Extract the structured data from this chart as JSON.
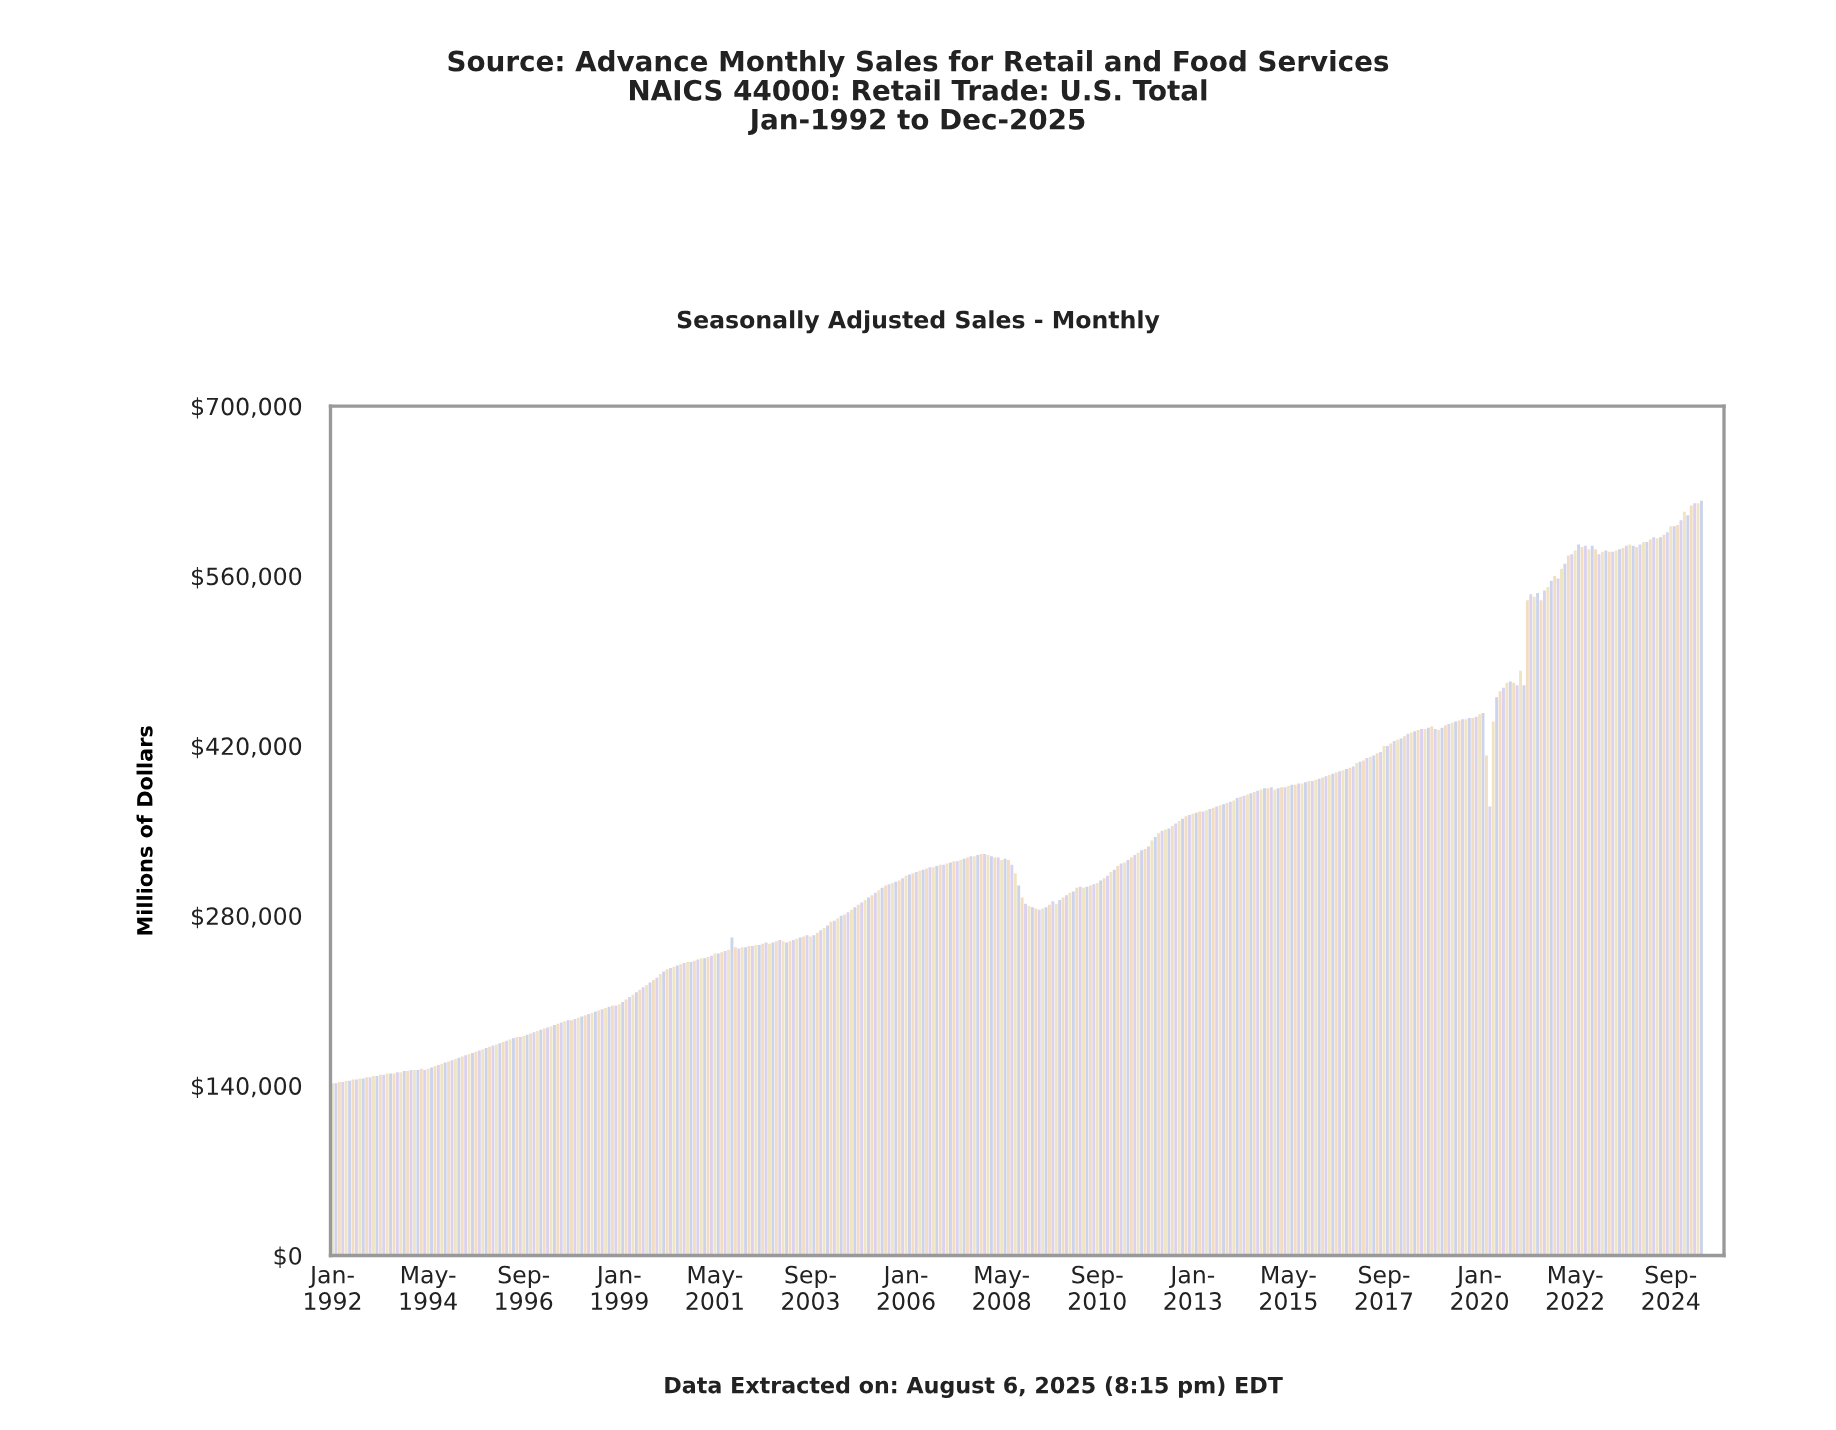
{
  "chart_data": {
    "type": "bar",
    "title": "Source: Advance Monthly Sales for Retail and Food Services\nNAICS 44000: Retail Trade: U.S. Total\nJan-1992 to Dec-2025",
    "subtitle": "Seasonally Adjusted Sales - Monthly",
    "ylabel": "Millions of Dollars",
    "annotations": [
      "Data Extracted on: August 6, 2025 (8:15 pm) EDT"
    ],
    "ylim": [
      0,
      700000
    ],
    "yticks": [
      {
        "value": 0,
        "label": "$0"
      },
      {
        "value": 140000,
        "label": "$140,000"
      },
      {
        "value": 280000,
        "label": "$280,000"
      },
      {
        "value": 420000,
        "label": "$420,000"
      },
      {
        "value": 560000,
        "label": "$560,000"
      },
      {
        "value": 700000,
        "label": "$700,000"
      }
    ],
    "grid": false,
    "legend": false,
    "categories": [
      "Jan-\n1992",
      null,
      null,
      null,
      null,
      null,
      null,
      null,
      null,
      null,
      null,
      null,
      null,
      null,
      null,
      null,
      null,
      null,
      null,
      null,
      null,
      null,
      null,
      null,
      null,
      null,
      null,
      null,
      "May-\n1994",
      null,
      null,
      null,
      null,
      null,
      null,
      null,
      null,
      null,
      null,
      null,
      null,
      null,
      null,
      null,
      null,
      null,
      null,
      null,
      null,
      null,
      null,
      null,
      null,
      null,
      null,
      null,
      "Sep-\n1996",
      null,
      null,
      null,
      null,
      null,
      null,
      null,
      null,
      null,
      null,
      null,
      null,
      null,
      null,
      null,
      null,
      null,
      null,
      null,
      null,
      null,
      null,
      null,
      null,
      null,
      null,
      null,
      "Jan-\n1999",
      null,
      null,
      null,
      null,
      null,
      null,
      null,
      null,
      null,
      null,
      null,
      null,
      null,
      null,
      null,
      null,
      null,
      null,
      null,
      null,
      null,
      null,
      null,
      null,
      null,
      null,
      null,
      "May-\n2001",
      null,
      null,
      null,
      null,
      null,
      null,
      null,
      null,
      null,
      null,
      null,
      null,
      null,
      null,
      null,
      null,
      null,
      null,
      null,
      null,
      null,
      null,
      null,
      null,
      null,
      null,
      null,
      "Sep-\n2003",
      null,
      null,
      null,
      null,
      null,
      null,
      null,
      null,
      null,
      null,
      null,
      null,
      null,
      null,
      null,
      null,
      null,
      null,
      null,
      null,
      null,
      null,
      null,
      null,
      null,
      null,
      null,
      "Jan-\n2006",
      null,
      null,
      null,
      null,
      null,
      null,
      null,
      null,
      null,
      null,
      null,
      null,
      null,
      null,
      null,
      null,
      null,
      null,
      null,
      null,
      null,
      null,
      null,
      null,
      null,
      null,
      null,
      "May-\n2008",
      null,
      null,
      null,
      null,
      null,
      null,
      null,
      null,
      null,
      null,
      null,
      null,
      null,
      null,
      null,
      null,
      null,
      null,
      null,
      null,
      null,
      null,
      null,
      null,
      null,
      null,
      null,
      "Sep-\n2010",
      null,
      null,
      null,
      null,
      null,
      null,
      null,
      null,
      null,
      null,
      null,
      null,
      null,
      null,
      null,
      null,
      null,
      null,
      null,
      null,
      null,
      null,
      null,
      null,
      null,
      null,
      null,
      "Jan-\n2013",
      null,
      null,
      null,
      null,
      null,
      null,
      null,
      null,
      null,
      null,
      null,
      null,
      null,
      null,
      null,
      null,
      null,
      null,
      null,
      null,
      null,
      null,
      null,
      null,
      null,
      null,
      null,
      "May-\n2015",
      null,
      null,
      null,
      null,
      null,
      null,
      null,
      null,
      null,
      null,
      null,
      null,
      null,
      null,
      null,
      null,
      null,
      null,
      null,
      null,
      null,
      null,
      null,
      null,
      null,
      null,
      null,
      "Sep-\n2017",
      null,
      null,
      null,
      null,
      null,
      null,
      null,
      null,
      null,
      null,
      null,
      null,
      null,
      null,
      null,
      null,
      null,
      null,
      null,
      null,
      null,
      null,
      null,
      null,
      null,
      null,
      null,
      "Jan-\n2020",
      null,
      null,
      null,
      null,
      null,
      null,
      null,
      null,
      null,
      null,
      null,
      null,
      null,
      null,
      null,
      null,
      null,
      null,
      null,
      null,
      null,
      null,
      null,
      null,
      null,
      null,
      null,
      "May-\n2022",
      null,
      null,
      null,
      null,
      null,
      null,
      null,
      null,
      null,
      null,
      null,
      null,
      null,
      null,
      null,
      null,
      null,
      null,
      null,
      null,
      null,
      null,
      null,
      null,
      null,
      null,
      null,
      "Sep-\n2024",
      null,
      null,
      null,
      null,
      null,
      null,
      null,
      null,
      null,
      null,
      null,
      null,
      null,
      null,
      null
    ],
    "values": [
      142000,
      142000,
      143000,
      143000,
      144000,
      144000,
      145000,
      145000,
      146000,
      146000,
      147000,
      147000,
      148000,
      148000,
      149000,
      149000,
      150000,
      150000,
      150000,
      151000,
      151000,
      152000,
      152000,
      153000,
      153000,
      153000,
      154000,
      153000,
      154000,
      155000,
      156000,
      157000,
      158000,
      159000,
      160000,
      161000,
      162000,
      163000,
      164000,
      165000,
      166000,
      167000,
      168000,
      169000,
      170000,
      171000,
      172000,
      173000,
      174000,
      175000,
      176000,
      177000,
      178000,
      179000,
      180000,
      180000,
      181000,
      182000,
      183000,
      184000,
      185000,
      186000,
      187000,
      188000,
      189000,
      190000,
      191000,
      192000,
      193000,
      194000,
      194000,
      195000,
      196000,
      197000,
      198000,
      199000,
      200000,
      201000,
      202000,
      203000,
      204000,
      205000,
      206000,
      206000,
      207000,
      209000,
      211000,
      213000,
      215000,
      217000,
      219000,
      221000,
      223000,
      225000,
      227000,
      229000,
      232000,
      234000,
      236000,
      237000,
      238000,
      239000,
      240000,
      241000,
      242000,
      242000,
      243000,
      244000,
      245000,
      245000,
      246000,
      247000,
      249000,
      249000,
      250000,
      251000,
      252000,
      262000,
      254000,
      253000,
      254000,
      254000,
      255000,
      255000,
      256000,
      256000,
      257000,
      258000,
      257000,
      258000,
      259000,
      260000,
      259000,
      258000,
      259000,
      260000,
      261000,
      262000,
      263000,
      264000,
      263000,
      264000,
      266000,
      268000,
      270000,
      272000,
      275000,
      276000,
      278000,
      280000,
      281000,
      283000,
      285000,
      287000,
      289000,
      291000,
      293000,
      295000,
      297000,
      299000,
      301000,
      303000,
      305000,
      306000,
      307000,
      308000,
      309000,
      311000,
      313000,
      314000,
      315000,
      316000,
      317000,
      318000,
      319000,
      320000,
      320000,
      321000,
      322000,
      322000,
      323000,
      324000,
      325000,
      325000,
      326000,
      327000,
      328000,
      329000,
      329000,
      330000,
      331000,
      331000,
      330000,
      329000,
      328000,
      328000,
      326000,
      327000,
      326000,
      322000,
      315000,
      305000,
      295000,
      290000,
      288000,
      287000,
      286000,
      285000,
      286000,
      287000,
      289000,
      292000,
      290000,
      293000,
      295000,
      297000,
      299000,
      300000,
      303000,
      304000,
      303000,
      304000,
      305000,
      306000,
      307000,
      309000,
      311000,
      313000,
      316000,
      318000,
      321000,
      323000,
      324000,
      326000,
      328000,
      330000,
      332000,
      334000,
      335000,
      337000,
      342000,
      345000,
      348000,
      350000,
      351000,
      352000,
      354000,
      356000,
      358000,
      360000,
      362000,
      363000,
      364000,
      365000,
      366000,
      366000,
      367000,
      368000,
      369000,
      370000,
      371000,
      372000,
      373000,
      374000,
      375000,
      377000,
      378000,
      379000,
      380000,
      381000,
      382000,
      383000,
      384000,
      385000,
      385000,
      386000,
      384000,
      385000,
      386000,
      386000,
      387000,
      388000,
      388000,
      389000,
      389000,
      390000,
      391000,
      391000,
      392000,
      393000,
      394000,
      395000,
      396000,
      397000,
      398000,
      399000,
      400000,
      401000,
      402000,
      403000,
      406000,
      407000,
      408000,
      410000,
      411000,
      412000,
      414000,
      415000,
      420000,
      420000,
      422000,
      424000,
      425000,
      426000,
      428000,
      430000,
      431000,
      432000,
      433000,
      434000,
      434000,
      435000,
      436000,
      434000,
      433000,
      435000,
      437000,
      438000,
      439000,
      440000,
      441000,
      442000,
      442000,
      443000,
      443000,
      444000,
      446000,
      447000,
      412000,
      370000,
      440000,
      460000,
      465000,
      468000,
      472000,
      473000,
      472000,
      470000,
      482000,
      470000,
      540000,
      545000,
      543000,
      546000,
      540000,
      548000,
      551000,
      556000,
      560000,
      558000,
      566000,
      570000,
      577000,
      578000,
      581000,
      586000,
      584000,
      585000,
      582000,
      585000,
      582000,
      578000,
      580000,
      581000,
      580000,
      580000,
      581000,
      582000,
      583000,
      585000,
      586000,
      585000,
      584000,
      586000,
      588000,
      588000,
      590000,
      592000,
      591000,
      592000,
      594000,
      596000,
      601000,
      601000,
      602000,
      606000,
      613000,
      610000,
      618000,
      620000,
      620000,
      622000,
      null,
      null,
      null,
      null,
      null,
      null
    ],
    "colors": [
      "#efe4c4",
      "#cdd3ea",
      "#f2dcc2",
      "#dad2ee",
      "#efe4c4",
      "#cdd3ea",
      "#f2dcc2",
      "#dad2ee",
      "#efe4c4",
      "#cdd3ea",
      "#f2dcc2",
      "#dad2ee",
      "#efe4c4",
      "#cdd3ea",
      "#f2dcc2",
      "#dad2ee",
      "#efe4c4",
      "#cdd3ea",
      "#f2dcc2",
      "#dad2ee",
      "#efe4c4",
      "#cdd3ea",
      "#f2dcc2",
      "#dad2ee",
      "#efe4c4",
      "#cdd3ea",
      "#f2dcc2",
      "#dad2ee",
      "#efe4c4",
      "#cdd3ea",
      "#f2dcc2",
      "#dad2ee",
      "#efe4c4",
      "#cdd3ea",
      "#f2dcc2",
      "#dad2ee",
      "#efe4c4",
      "#cdd3ea",
      "#f2dcc2",
      "#dad2ee",
      "#efe4c4",
      "#cdd3ea",
      "#f2dcc2",
      "#dad2ee",
      "#efe4c4",
      "#cdd3ea",
      "#f2dcc2",
      "#dad2ee",
      "#efe4c4",
      "#cdd3ea",
      "#f2dcc2",
      "#dad2ee",
      "#efe4c4",
      "#cdd3ea",
      "#f2dcc2",
      "#dad2ee",
      "#efe4c4",
      "#cdd3ea",
      "#f2dcc2",
      "#dad2ee",
      "#efe4c4",
      "#cdd3ea",
      "#f2dcc2",
      "#dad2ee",
      "#efe4c4",
      "#cdd3ea",
      "#f2dcc2",
      "#dad2ee",
      "#efe4c4",
      "#cdd3ea",
      "#f2dcc2",
      "#dad2ee",
      "#efe4c4",
      "#cdd3ea",
      "#f2dcc2",
      "#dad2ee",
      "#efe4c4",
      "#cdd3ea",
      "#f2dcc2",
      "#dad2ee",
      "#efe4c4",
      "#cdd3ea",
      "#f2dcc2",
      "#dad2ee",
      "#efe4c4",
      "#cdd3ea",
      "#f2dcc2",
      "#dad2ee",
      "#efe4c4",
      "#cdd3ea",
      "#f2dcc2",
      "#dad2ee",
      "#efe4c4",
      "#cdd3ea",
      "#f2dcc2",
      "#dad2ee",
      "#efe4c4",
      "#cdd3ea",
      "#f2dcc2",
      "#dad2ee",
      "#efe4c4",
      "#cdd3ea",
      "#f2dcc2",
      "#dad2ee",
      "#efe4c4",
      "#cdd3ea",
      "#f2dcc2",
      "#dad2ee",
      "#efe4c4",
      "#cdd3ea",
      "#f2dcc2",
      "#dad2ee",
      "#efe4c4",
      "#cdd3ea",
      "#f2dcc2",
      "#dad2ee",
      "#efe4c4",
      "#cdd3ea",
      "#f2dcc2",
      "#dad2ee",
      "#efe4c4",
      "#cdd3ea",
      "#f2dcc2",
      "#dad2ee",
      "#efe4c4",
      "#cdd3ea",
      "#f2dcc2",
      "#dad2ee",
      "#efe4c4",
      "#cdd3ea",
      "#f2dcc2",
      "#dad2ee",
      "#efe4c4",
      "#cdd3ea",
      "#f2dcc2",
      "#dad2ee",
      "#efe4c4",
      "#cdd3ea",
      "#f2dcc2",
      "#dad2ee",
      "#efe4c4",
      "#cdd3ea",
      "#f2dcc2",
      "#dad2ee",
      "#efe4c4",
      "#cdd3ea",
      "#f2dcc2",
      "#dad2ee",
      "#efe4c4",
      "#cdd3ea",
      "#f2dcc2",
      "#dad2ee",
      "#efe4c4",
      "#cdd3ea",
      "#f2dcc2",
      "#dad2ee",
      "#efe4c4",
      "#cdd3ea",
      "#f2dcc2",
      "#dad2ee",
      "#efe4c4",
      "#cdd3ea",
      "#f2dcc2",
      "#dad2ee",
      "#efe4c4",
      "#cdd3ea",
      "#f2dcc2",
      "#dad2ee",
      "#efe4c4",
      "#cdd3ea",
      "#f2dcc2",
      "#dad2ee",
      "#efe4c4",
      "#cdd3ea",
      "#f2dcc2",
      "#dad2ee",
      "#efe4c4",
      "#cdd3ea",
      "#f2dcc2",
      "#dad2ee",
      "#efe4c4",
      "#cdd3ea",
      "#f2dcc2",
      "#dad2ee",
      "#efe4c4",
      "#cdd3ea",
      "#f2dcc2",
      "#dad2ee",
      "#efe4c4",
      "#cdd3ea",
      "#f2dcc2",
      "#dad2ee",
      "#efe4c4",
      "#cdd3ea",
      "#f2dcc2",
      "#dad2ee",
      "#efe4c4",
      "#cdd3ea",
      "#f2dcc2",
      "#dad2ee",
      "#efe4c4",
      "#cdd3ea",
      "#f2dcc2",
      "#dad2ee",
      "#efe4c4",
      "#cdd3ea",
      "#f2dcc2",
      "#dad2ee",
      "#efe4c4",
      "#cdd3ea",
      "#f2dcc2",
      "#dad2ee",
      "#efe4c4",
      "#cdd3ea",
      "#f2dcc2",
      "#dad2ee",
      "#efe4c4",
      "#cdd3ea",
      "#f2dcc2",
      "#dad2ee",
      "#efe4c4",
      "#cdd3ea",
      "#f2dcc2",
      "#dad2ee",
      "#efe4c4",
      "#cdd3ea",
      "#f2dcc2",
      "#dad2ee",
      "#efe4c4",
      "#cdd3ea",
      "#f2dcc2",
      "#dad2ee",
      "#efe4c4",
      "#cdd3ea",
      "#f2dcc2",
      "#dad2ee",
      "#efe4c4",
      "#cdd3ea",
      "#f2dcc2",
      "#dad2ee",
      "#efe4c4",
      "#cdd3ea",
      "#f2dcc2",
      "#dad2ee",
      "#efe4c4",
      "#cdd3ea",
      "#f2dcc2",
      "#dad2ee",
      "#efe4c4",
      "#cdd3ea",
      "#f2dcc2",
      "#dad2ee",
      "#efe4c4",
      "#cdd3ea",
      "#f2dcc2",
      "#dad2ee",
      "#efe4c4",
      "#cdd3ea",
      "#f2dcc2",
      "#dad2ee",
      "#efe4c4",
      "#cdd3ea",
      "#f2dcc2",
      "#dad2ee",
      "#efe4c4",
      "#cdd3ea",
      "#f2dcc2",
      "#dad2ee",
      "#efe4c4",
      "#cdd3ea",
      "#f2dcc2",
      "#dad2ee",
      "#efe4c4",
      "#cdd3ea",
      "#f2dcc2",
      "#dad2ee",
      "#efe4c4",
      "#cdd3ea",
      "#f2dcc2",
      "#dad2ee",
      "#efe4c4",
      "#cdd3ea",
      "#f2dcc2",
      "#dad2ee",
      "#efe4c4",
      "#cdd3ea",
      "#f2dcc2",
      "#dad2ee",
      "#efe4c4",
      "#cdd3ea",
      "#f2dcc2",
      "#dad2ee",
      "#efe4c4",
      "#cdd3ea",
      "#f2dcc2",
      "#dad2ee",
      "#efe4c4",
      "#cdd3ea",
      "#f2dcc2",
      "#dad2ee",
      "#efe4c4",
      "#cdd3ea",
      "#f2dcc2",
      "#dad2ee",
      "#efe4c4",
      "#cdd3ea",
      "#f2dcc2",
      "#dad2ee",
      "#efe4c4",
      "#cdd3ea",
      "#f2dcc2",
      "#dad2ee",
      "#efe4c4",
      "#cdd3ea",
      "#f2dcc2",
      "#dad2ee",
      "#efe4c4",
      "#cdd3ea",
      "#f2dcc2",
      "#dad2ee",
      "#efe4c4",
      "#cdd3ea",
      "#f2dcc2",
      "#dad2ee",
      "#efe4c4",
      "#cdd3ea",
      "#f2dcc2",
      "#dad2ee",
      "#efe4c4",
      "#cdd3ea",
      "#f2dcc2",
      "#dad2ee",
      "#efe4c4",
      "#cdd3ea",
      "#f2dcc2",
      "#dad2ee",
      "#efe4c4",
      "#cdd3ea",
      "#f2dcc2",
      "#dad2ee",
      "#efe4c4",
      "#cdd3ea",
      "#f2dcc2",
      "#dad2ee",
      "#efe4c4",
      "#cdd3ea",
      "#f2dcc2",
      "#dad2ee",
      "#efe4c4",
      "#cdd3ea",
      "#f2dcc2",
      "#dad2ee",
      "#efe4c4",
      "#cdd3ea",
      "#f2dcc2",
      "#dad2ee",
      "#efe4c4",
      "#cdd3ea",
      "#f2dcc2",
      "#dad2ee",
      "#efe4c4",
      "#cdd3ea",
      "#f2dcc2",
      "#dad2ee",
      "#efe4c4",
      "#cdd3ea",
      "#f2dcc2",
      "#dad2ee",
      "#efe4c4",
      "#cdd3ea",
      "#f2dcc2",
      "#dad2ee",
      "#efe4c4",
      "#cdd3ea",
      "#f2dcc2",
      "#dad2ee",
      "#efe4c4",
      "#cdd3ea",
      "#f2dcc2",
      "#dad2ee",
      "#efe4c4",
      "#cdd3ea",
      "#f2dcc2",
      "#dad2ee",
      "#efe4c4",
      "#cdd3ea",
      "#f2dcc2",
      "#dad2ee",
      "#efe4c4",
      "#cdd3ea",
      "#f2dcc2",
      "#dad2ee",
      "#efe4c4",
      "#cdd3ea",
      "#f2dcc2",
      "#dad2ee",
      "#efe4c4",
      "#cdd3ea",
      "#f2dcc2",
      "#dad2ee",
      "#efe4c4",
      "#cdd3ea",
      "#efe4c4",
      "#efe4c4",
      "#efe4c4",
      "#efe4c4",
      "#efe4c4",
      "#efe4c4"
    ]
  }
}
